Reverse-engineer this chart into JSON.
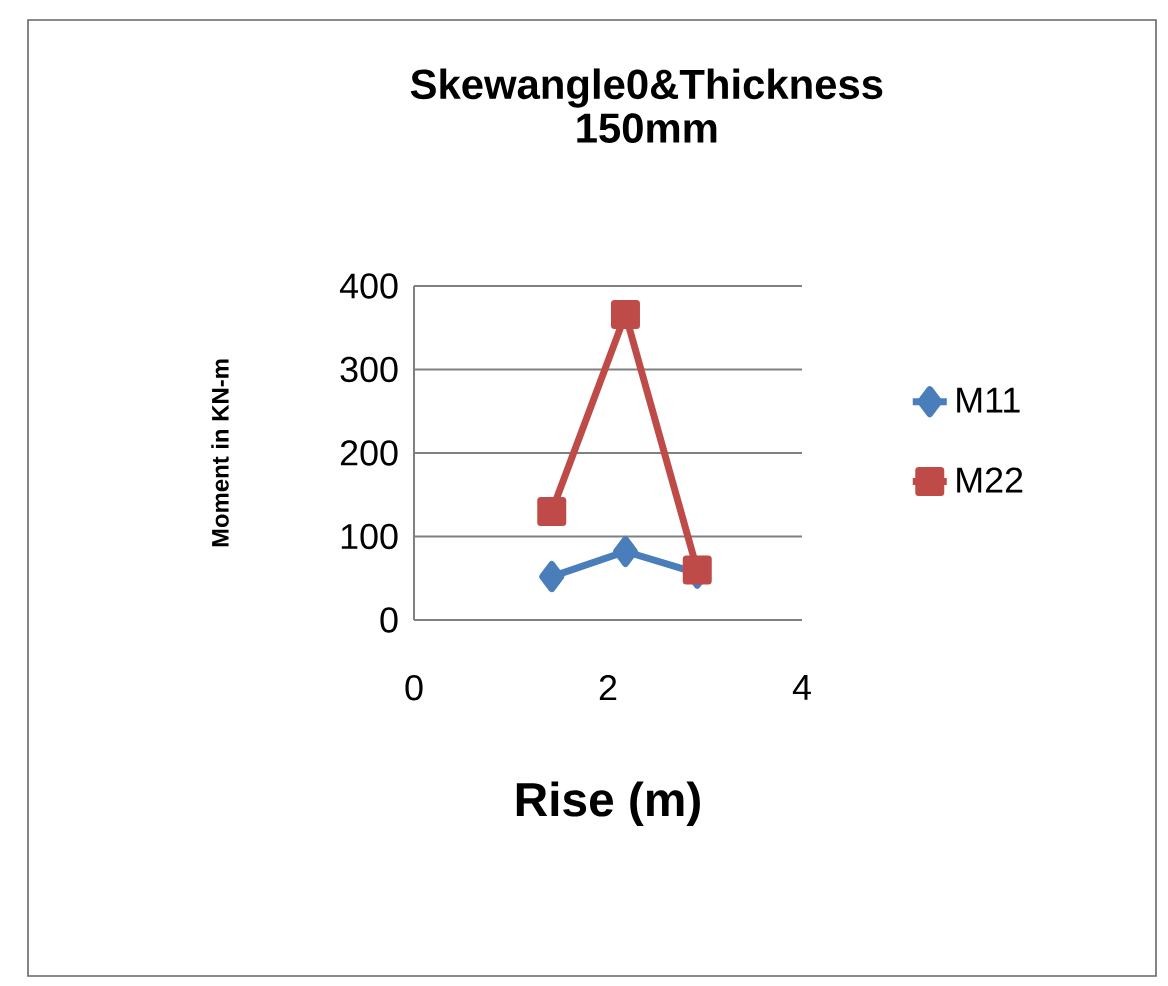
{
  "chart_data": {
    "type": "line",
    "title": "Skewangle0&Thickness 150mm",
    "xlabel": "Rise (m)",
    "ylabel": "Moment in KN-m",
    "series": [
      {
        "name": "M11",
        "color": "#4a7ebb",
        "marker": "diamond",
        "x": [
          1.42,
          2.18,
          2.92
        ],
        "values": [
          52,
          82,
          56
        ]
      },
      {
        "name": "M22",
        "color": "#be4b48",
        "marker": "square",
        "x": [
          1.42,
          2.18,
          2.92
        ],
        "values": [
          130,
          366,
          60
        ]
      }
    ],
    "xlim": [
      0,
      4
    ],
    "xticks": [
      0,
      2,
      4
    ],
    "ylim": [
      0,
      400
    ],
    "yticks": [
      0,
      100,
      200,
      300,
      400
    ],
    "grid": "y",
    "legend": "right"
  }
}
